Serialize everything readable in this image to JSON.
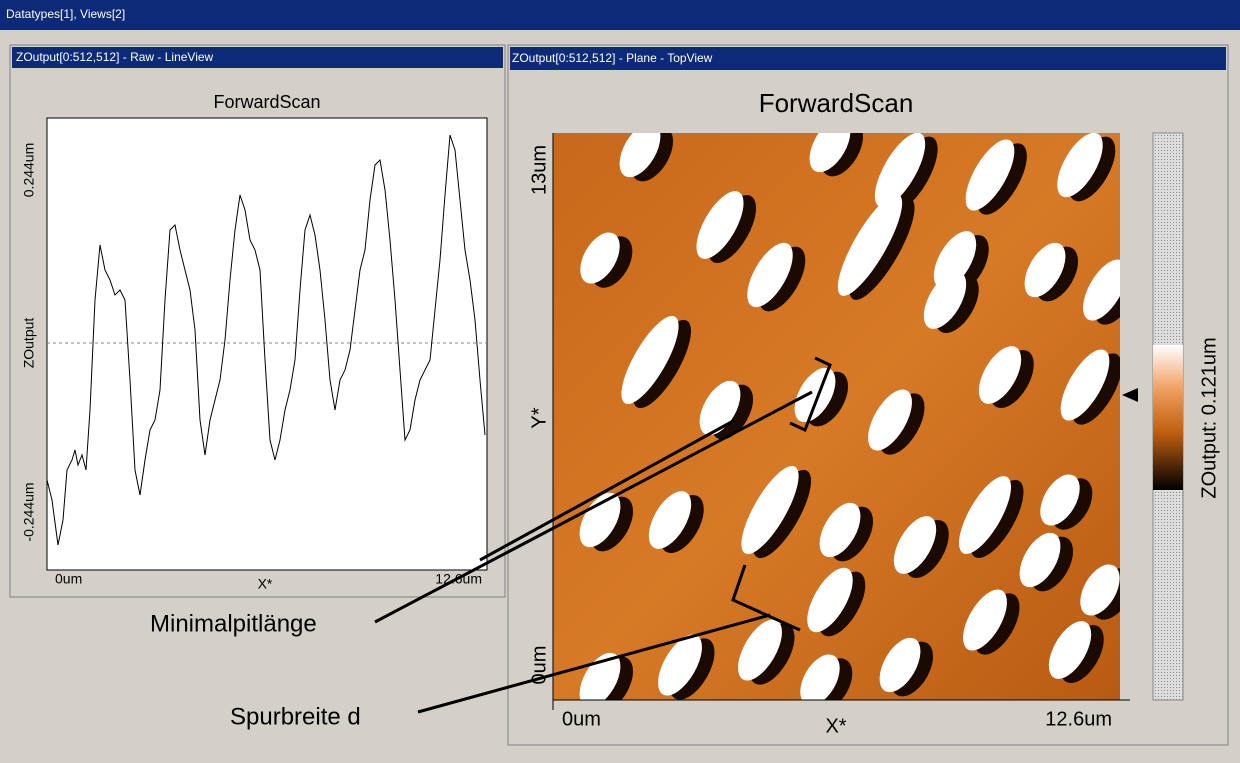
{
  "window": {
    "title": "Datatypes[1], Views[2]"
  },
  "line_view": {
    "title": "ZOutput[0:512,512] - Raw - LineView",
    "plot_title": "ForwardScan",
    "y_axis_label": "ZOutput",
    "x_axis_label": "X*",
    "y_top": "0.244um",
    "y_bottom": "-0.244um",
    "x_left": "0um",
    "x_right": "12.6um"
  },
  "top_view": {
    "title": "ZOutput[0:512,512] - Plane - TopView",
    "plot_title": "ForwardScan",
    "x_axis_label": "X*",
    "y_axis_label": "Y*",
    "x_left": "0um",
    "x_right": "12.6um",
    "y_top": "13um",
    "y_bottom": "0um",
    "colorbar_label": "ZOutput: 0.121um"
  },
  "annotations": [
    "Minimalpitlänge",
    "Spurbreite d"
  ]
}
